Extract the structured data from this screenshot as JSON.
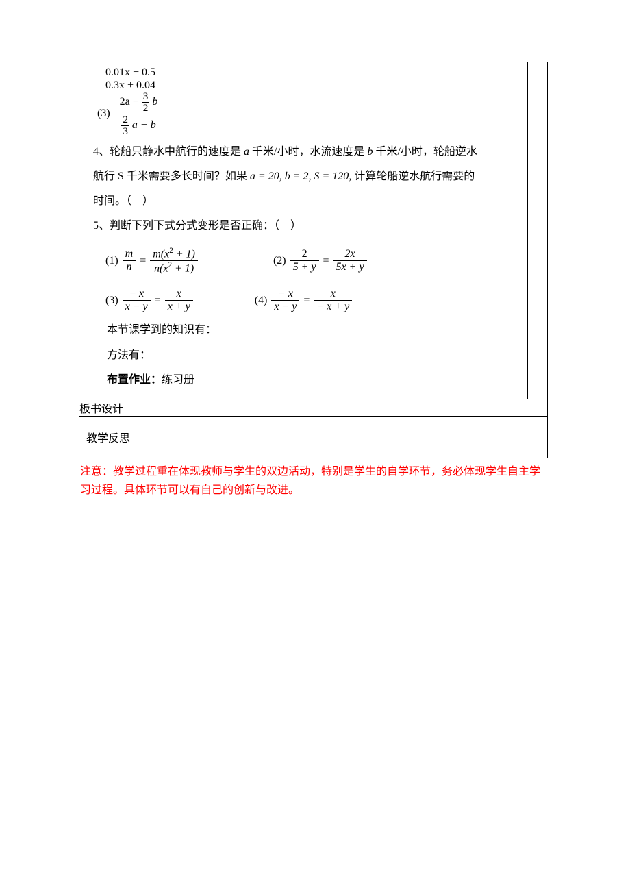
{
  "colors": {
    "text": "#000000",
    "background": "#ffffff",
    "border": "#000000",
    "footnote": "#ff0000"
  },
  "fonts": {
    "body_family": "SimSun",
    "math_family": "Times New Roman",
    "body_size_pt": 12,
    "math_style": "italic"
  },
  "frac_top": {
    "num": "0.01x − 0.5",
    "den": "0.3x + 0.04"
  },
  "item3": {
    "label": "(3)",
    "outer_num_left": "2a −",
    "outer_num_mini": {
      "num": "3",
      "den": "2"
    },
    "outer_num_right": "b",
    "outer_den_mini": {
      "num": "2",
      "den": "3"
    },
    "outer_den_right": "a + b"
  },
  "q4": {
    "line1_a": "4、轮船只静水中航行的速度是",
    "var_a": "a",
    "line1_b": "千米/小时，水流速度是",
    "var_b": "b",
    "line1_c": "千米/小时，轮船逆水",
    "line2_a": "航行 S 千米需要多长时间？如果",
    "eq": "a = 20, b = 2, S = 120,",
    "line2_b": "计算轮船逆水航行需要的",
    "line3": "时间。（　）"
  },
  "q5": {
    "stem": "5、判断下列下式分式变形是否正确：（　）",
    "items": [
      {
        "label": "(1)",
        "lhs": {
          "num": "m",
          "den": "n"
        },
        "rhs": {
          "num_a": "m(x",
          "num_sup": "2",
          "num_b": " + 1)",
          "den_a": "n(x",
          "den_sup": "2",
          "den_b": " + 1)"
        }
      },
      {
        "label": "(2)",
        "lhs": {
          "num": "2",
          "den": "5 + y"
        },
        "rhs": {
          "num": "2x",
          "den": "5x + y"
        }
      },
      {
        "label": "(3)",
        "lhs": {
          "num": "− x",
          "den": "x − y"
        },
        "rhs": {
          "num": "x",
          "den": "x + y"
        }
      },
      {
        "label": "(4)",
        "lhs": {
          "num": "− x",
          "den": "x − y"
        },
        "rhs": {
          "num": "x",
          "den": "− x + y"
        }
      }
    ]
  },
  "summary": {
    "knowledge": "本节课学到的知识有：",
    "methods": "方法有：",
    "hw_label": "布置作业：",
    "hw_value": "练习册"
  },
  "rows": {
    "board": "板书设计",
    "reflect": "教学反思"
  },
  "footnote": "注意：教学过程重在体现教师与学生的双边活动，特别是学生的自学环节，务必体现学生自主学习过程。具体环节可以有自己的创新与改进。"
}
